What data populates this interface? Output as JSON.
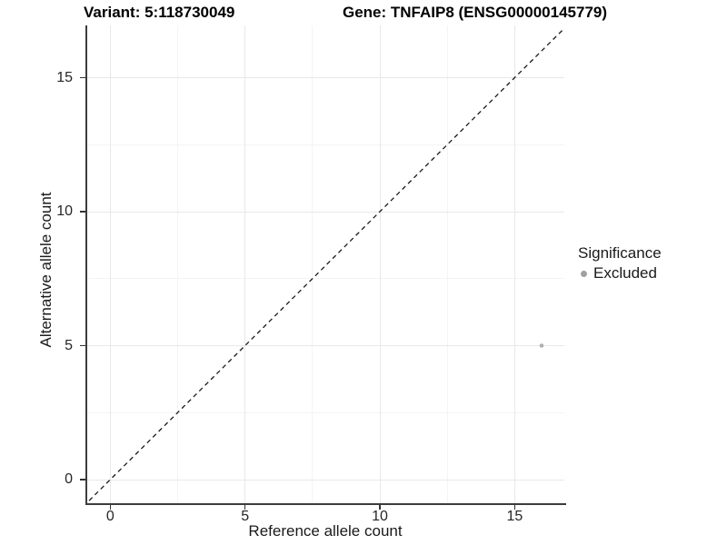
{
  "figure": {
    "title_variant": "Variant: 5:118730049",
    "title_gene": "Gene: TNFAIP8 (ENSG00000145779)"
  },
  "axes": {
    "x": {
      "title": "Reference allele count",
      "major_ticks": [
        0,
        5,
        10,
        15
      ],
      "minor_ticks": [
        2.5,
        7.5,
        12.5
      ],
      "range": [
        -0.9,
        16.85
      ]
    },
    "y": {
      "title": "Alternative allele count",
      "major_ticks": [
        0,
        5,
        10,
        15
      ],
      "minor_ticks": [
        2.5,
        7.5,
        12.5
      ],
      "range": [
        -0.9,
        16.95
      ]
    }
  },
  "legend": {
    "title": "Significance",
    "items": [
      {
        "label": "Excluded",
        "color": "#a0a0a0"
      }
    ]
  },
  "chart_data": {
    "type": "scatter",
    "title": "Variant: 5:118730049 | Gene: TNFAIP8 (ENSG00000145779)",
    "xlabel": "Reference allele count",
    "ylabel": "Alternative allele count",
    "xlim": [
      -0.9,
      16.85
    ],
    "ylim": [
      -0.9,
      16.95
    ],
    "xticks": [
      0,
      5,
      10,
      15
    ],
    "yticks": [
      0,
      5,
      10,
      15
    ],
    "grid": {
      "major": true,
      "minor": true
    },
    "legend_position": "right",
    "series": [
      {
        "name": "Excluded",
        "marker": "circle",
        "color": "#b0b0b0",
        "point_radius": 2.3,
        "points": [
          [
            16,
            5
          ]
        ]
      }
    ],
    "annotations": [
      {
        "type": "reference_line",
        "equation": "y = x",
        "style": "dashed",
        "color": "#1a1a1a"
      }
    ]
  },
  "colors": {
    "background": "#ffffff",
    "axis_line": "#3c3c3c",
    "grid_major": "#e8e8e8",
    "grid_minor": "#f4f4f4",
    "tick_label": "#262626",
    "title": "#000000"
  }
}
